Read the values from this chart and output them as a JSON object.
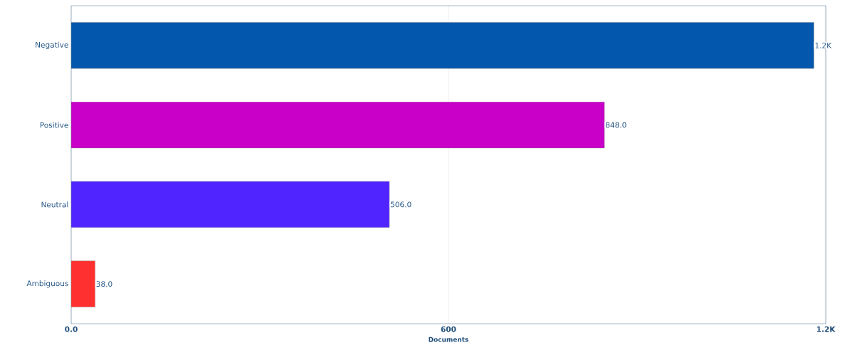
{
  "chart_data": {
    "type": "bar",
    "orientation": "horizontal",
    "xlabel": "Documents",
    "categories": [
      "Negative",
      "Positive",
      "Neutral",
      "Ambiguous"
    ],
    "values": [
      1181,
      848,
      506,
      38
    ],
    "colors": [
      "#0357ad",
      "#c800c8",
      "#5024ff",
      "#ff3030"
    ],
    "value_labels": [
      "1.2K",
      "848.0",
      "506.0",
      "38.0"
    ],
    "xlim": [
      0,
      1200
    ],
    "xticks": [
      {
        "value": 0,
        "label": "0.0"
      },
      600,
      {
        "value": 1200,
        "label": "1.2K"
      }
    ],
    "grid": "x"
  }
}
